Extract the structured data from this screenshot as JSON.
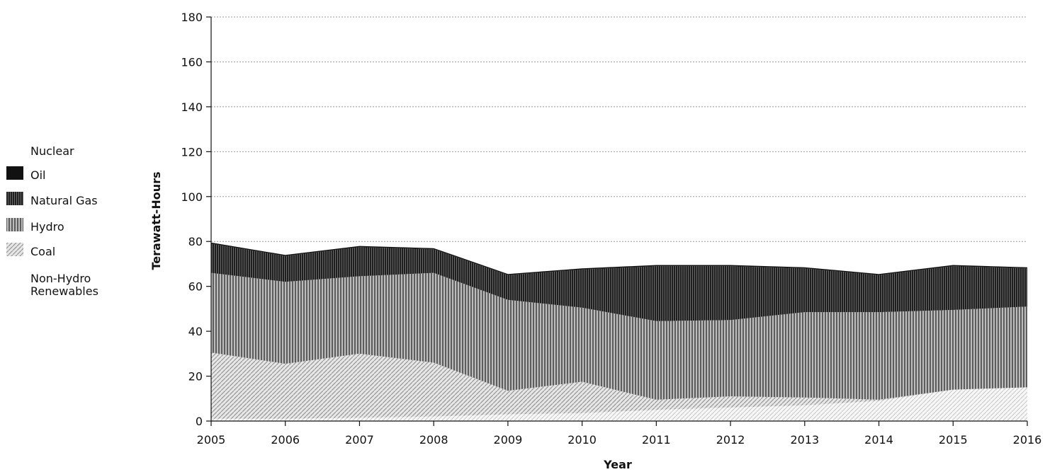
{
  "chart_data": {
    "type": "area",
    "stacked": true,
    "title": "",
    "xlabel": "Year",
    "ylabel": "Terawatt-Hours",
    "x": [
      2005,
      2006,
      2007,
      2008,
      2009,
      2010,
      2011,
      2012,
      2013,
      2014,
      2015,
      2016
    ],
    "ylim": [
      0,
      180
    ],
    "yticks": [
      0,
      20,
      40,
      60,
      80,
      100,
      120,
      140,
      160,
      180
    ],
    "grid": "horizontal dashed",
    "legend_position": "left",
    "series": [
      {
        "name": "Non-Hydro Renewables",
        "color": "#ffffff",
        "values": [
          1,
          1,
          1.5,
          2,
          3,
          3.5,
          5,
          6,
          7,
          9,
          14,
          15
        ]
      },
      {
        "name": "Coal",
        "color": "#d0d0d0",
        "values": [
          29.5,
          24.5,
          28.5,
          24,
          10.5,
          14,
          4.5,
          5,
          3.5,
          0.5,
          0,
          0
        ]
      },
      {
        "name": "Hydro",
        "color": "#8c8c8c",
        "values": [
          35.5,
          36.5,
          34.5,
          40,
          40.5,
          33,
          35,
          34,
          38,
          39,
          35.5,
          36
        ]
      },
      {
        "name": "Natural Gas",
        "color": "#4a4a4a",
        "values": [
          13,
          11.5,
          13,
          10.5,
          11,
          17,
          24.5,
          24,
          19.5,
          16.5,
          19.5,
          17
        ]
      },
      {
        "name": "Oil",
        "color": "#111111",
        "values": [
          0.5,
          0.5,
          0.5,
          0.5,
          0.5,
          0.5,
          0.5,
          0.5,
          0.5,
          0.5,
          0.5,
          0.5
        ]
      },
      {
        "name": "Nuclear",
        "color": "#ffffff",
        "values": [
          0,
          0,
          0,
          0,
          0,
          0,
          0,
          0,
          0,
          0,
          0,
          0
        ]
      }
    ],
    "legend_order": [
      "Nuclear",
      "Oil",
      "Natural Gas",
      "Hydro",
      "Coal",
      "Non-Hydro Renewables"
    ]
  }
}
